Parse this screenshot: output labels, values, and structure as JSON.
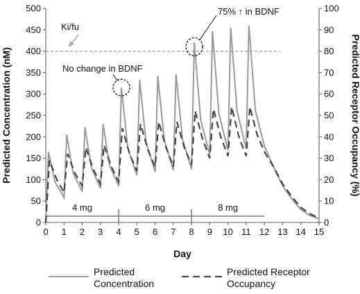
{
  "chart_data": {
    "type": "line",
    "title": "",
    "xlabel": "Day",
    "ylabel_left": "Predicted Concentration (nM)",
    "ylabel_right": "Predicted Receptor Occupancy (%)",
    "xlim": [
      0,
      15
    ],
    "ylim_left": [
      0,
      500
    ],
    "ylim_right": [
      0,
      100
    ],
    "x_ticks": [
      "0",
      "1",
      "2",
      "3",
      "4",
      "5",
      "6",
      "7",
      "8",
      "9",
      "10",
      "11",
      "12",
      "13",
      "14",
      "15"
    ],
    "y_ticks_left": [
      "0",
      "50",
      "100",
      "150",
      "200",
      "250",
      "300",
      "350",
      "400",
      "450",
      "500"
    ],
    "y_ticks_right": [
      "0",
      "10",
      "20",
      "30",
      "40",
      "50",
      "60",
      "70",
      "80",
      "90",
      "100"
    ],
    "grid": false,
    "legend_position": "bottom",
    "series": [
      {
        "name": "Predicted Concentration",
        "axis": "left",
        "style": "solid",
        "color": "#999999",
        "points": [
          [
            0,
            0
          ],
          [
            0.15,
            165
          ],
          [
            0.5,
            95
          ],
          [
            1,
            58
          ],
          [
            1.15,
            205
          ],
          [
            1.5,
            115
          ],
          [
            2,
            72
          ],
          [
            2.15,
            222
          ],
          [
            2.5,
            128
          ],
          [
            3,
            80
          ],
          [
            3.15,
            230
          ],
          [
            3.5,
            133
          ],
          [
            4,
            85
          ],
          [
            4.15,
            315
          ],
          [
            4.5,
            175
          ],
          [
            5,
            110
          ],
          [
            5.15,
            333
          ],
          [
            5.5,
            188
          ],
          [
            6,
            118
          ],
          [
            6.15,
            342
          ],
          [
            6.5,
            193
          ],
          [
            7,
            122
          ],
          [
            7.15,
            346
          ],
          [
            7.5,
            196
          ],
          [
            8,
            124
          ],
          [
            8.15,
            420
          ],
          [
            8.5,
            240
          ],
          [
            9,
            158
          ],
          [
            9.15,
            447
          ],
          [
            9.5,
            255
          ],
          [
            10,
            168
          ],
          [
            10.15,
            455
          ],
          [
            10.5,
            260
          ],
          [
            11,
            172
          ],
          [
            11.15,
            460
          ],
          [
            11.5,
            262
          ],
          [
            12,
            178
          ],
          [
            12.5,
            130
          ],
          [
            13,
            85
          ],
          [
            13.5,
            55
          ],
          [
            14,
            30
          ],
          [
            14.5,
            16
          ],
          [
            15,
            8
          ]
        ]
      },
      {
        "name": "Predicted Receptor Occupancy",
        "axis": "right",
        "style": "dashed",
        "color": "#444444",
        "points": [
          [
            0,
            0
          ],
          [
            0.2,
            29
          ],
          [
            0.6,
            20
          ],
          [
            1,
            14
          ],
          [
            1.2,
            32
          ],
          [
            1.6,
            23
          ],
          [
            2,
            17
          ],
          [
            2.2,
            35
          ],
          [
            2.6,
            25
          ],
          [
            3,
            18
          ],
          [
            3.2,
            36
          ],
          [
            3.6,
            26
          ],
          [
            4,
            19
          ],
          [
            4.2,
            44
          ],
          [
            4.6,
            32
          ],
          [
            5,
            24
          ],
          [
            5.2,
            46
          ],
          [
            5.6,
            34
          ],
          [
            6,
            26
          ],
          [
            6.2,
            47
          ],
          [
            6.6,
            35
          ],
          [
            7,
            26
          ],
          [
            7.2,
            47
          ],
          [
            7.6,
            35
          ],
          [
            8,
            27
          ],
          [
            8.2,
            52
          ],
          [
            8.6,
            39
          ],
          [
            9,
            30
          ],
          [
            9.2,
            53
          ],
          [
            9.6,
            40
          ],
          [
            10,
            31
          ],
          [
            10.2,
            54
          ],
          [
            10.6,
            40
          ],
          [
            11,
            31
          ],
          [
            11.2,
            54
          ],
          [
            11.6,
            41
          ],
          [
            12,
            33
          ],
          [
            12.5,
            26
          ],
          [
            13,
            18
          ],
          [
            13.5,
            12
          ],
          [
            14,
            7
          ],
          [
            14.5,
            4
          ],
          [
            15,
            2
          ]
        ]
      }
    ],
    "reference_line": {
      "label": "Ki/fu",
      "value": 400,
      "axis": "left"
    },
    "dose_periods": [
      {
        "label": "4 mg",
        "from": 0,
        "to": 4
      },
      {
        "label": "6 mg",
        "from": 4,
        "to": 8
      },
      {
        "label": "8 mg",
        "from": 8,
        "to": 12
      }
    ],
    "annotations": [
      {
        "text": "No change in BDNF",
        "day": 4.15,
        "value": 315
      },
      {
        "text": "75% ↑ in BDNF",
        "day": 8.15,
        "value": 420
      }
    ]
  }
}
